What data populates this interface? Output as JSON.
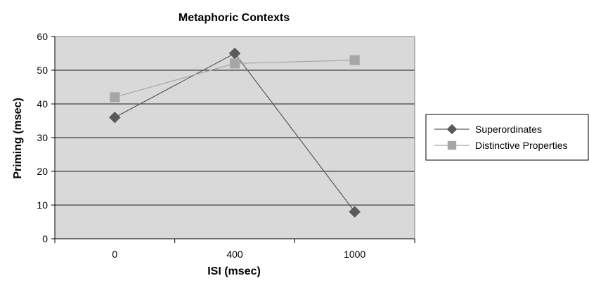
{
  "chart_data": {
    "type": "line",
    "title": "Metaphoric Contexts",
    "xlabel": "ISI (msec)",
    "ylabel": "Priming (msec)",
    "categories": [
      "0",
      "400",
      "1000"
    ],
    "ylim": [
      0,
      60
    ],
    "yticks": [
      0,
      10,
      20,
      30,
      40,
      50,
      60
    ],
    "grid": true,
    "legend_position": "right",
    "plot_background": "#d9d9d9",
    "series": [
      {
        "name": "Superordinates",
        "values": [
          36,
          55,
          8
        ],
        "marker": "diamond",
        "color": "#595959"
      },
      {
        "name": "Distinctive Properties",
        "values": [
          42,
          52,
          53
        ],
        "marker": "square",
        "color": "#a6a6a6"
      }
    ]
  }
}
